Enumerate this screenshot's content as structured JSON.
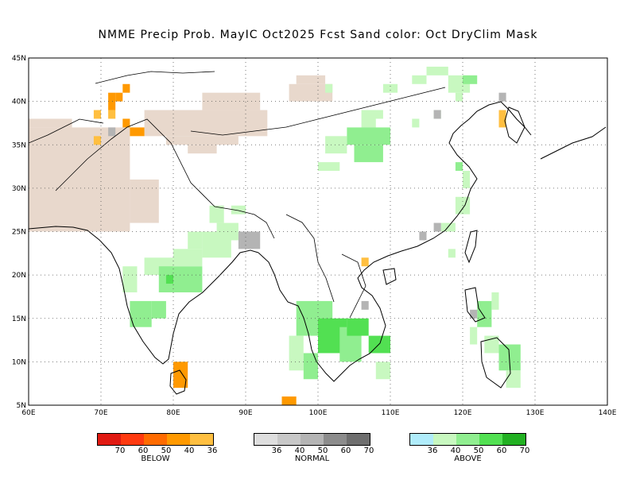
{
  "title": "NMME Precip Prob. MayIC  Oct2025 Fcst  Sand color: Oct DryClim Mask",
  "map": {
    "lon_range": [
      60,
      140
    ],
    "lat_range": [
      5,
      45
    ],
    "lon_ticks": [
      "60E",
      "70E",
      "80E",
      "90E",
      "100E",
      "110E",
      "120E",
      "130E",
      "140E"
    ],
    "lat_ticks": [
      "5N",
      "10N",
      "15N",
      "20N",
      "25N",
      "30N",
      "35N",
      "40N",
      "45N"
    ],
    "grid": "dotted",
    "colors": {
      "dry_mask": "#e8d8cc",
      "below": [
        "#e01a12",
        "#ff3a10",
        "#ff6b00",
        "#ff9900",
        "#ffbf40"
      ],
      "normal": [
        "#dedede",
        "#c8c8c8",
        "#b4b4b4",
        "#8c8c8c",
        "#6e6e6e"
      ],
      "above": [
        "#b0ecfb",
        "#c8f8c0",
        "#90ee90",
        "#52e052",
        "#22b022"
      ]
    }
  },
  "legends": [
    {
      "id": "below",
      "caption": "BELOW",
      "labels": [
        "70",
        "60",
        "50",
        "40",
        "36"
      ]
    },
    {
      "id": "normal",
      "caption": "NORMAL",
      "labels": [
        "36",
        "40",
        "50",
        "60",
        "70"
      ]
    },
    {
      "id": "above",
      "caption": "ABOVE",
      "labels": [
        "36",
        "40",
        "50",
        "60",
        "70"
      ]
    }
  ]
}
